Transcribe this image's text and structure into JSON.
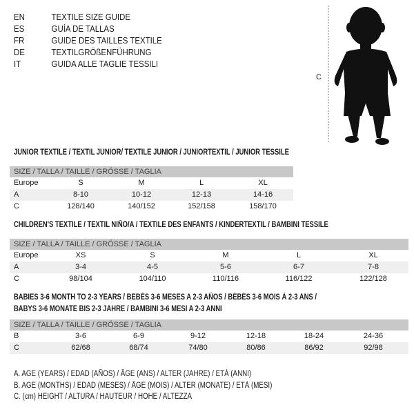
{
  "languages": [
    {
      "code": "EN",
      "title": "TEXTILE SIZE GUIDE"
    },
    {
      "code": "ES",
      "title": "GUÍA DE TALLAS"
    },
    {
      "code": "FR",
      "title": "GUIDE DES TAILLES TEXTILE"
    },
    {
      "code": "DE",
      "title": "TEXTILGRÖßENFÜHRUNG"
    },
    {
      "code": "IT",
      "title": "GUIDA ALLE TAGLIE TESSILI"
    }
  ],
  "figure": {
    "measure_label": "C",
    "icon": "child-silhouette"
  },
  "junior": {
    "title": "JUNIOR TEXTILE / TEXTIL JUNIOR/ TEXTILE JUNIOR / JUNIORTEXTIL / JUNIOR TESSILE",
    "header": "SIZE / TALLA / TAILLE / GRÖSSE / TAGLIA",
    "rows": [
      {
        "label": "Europe",
        "values": [
          "S",
          "M",
          "L",
          "XL"
        ]
      },
      {
        "label": "A",
        "values": [
          "8-10",
          "10-12",
          "12-13",
          "14-16"
        ]
      },
      {
        "label": "C",
        "values": [
          "128/140",
          "140/152",
          "152/158",
          "158/170"
        ]
      }
    ]
  },
  "children": {
    "title": "CHILDREN'S TEXTILE / TEXTIL NIÑO/A / TEXTILE DES ENFANTS / KINDERTEXTIL / BAMBINI TESSILE",
    "header": "SIZE / TALLA / TAILLE / GRÖSSE / TAGLIA",
    "rows": [
      {
        "label": "Europe",
        "values": [
          "XS",
          "S",
          "M",
          "L",
          "XL"
        ]
      },
      {
        "label": "A",
        "values": [
          "3-4",
          "4-5",
          "5-6",
          "6-7",
          "7-8"
        ]
      },
      {
        "label": "C",
        "values": [
          "98/104",
          "104/110",
          "110/116",
          "116/122",
          "122/128"
        ]
      }
    ]
  },
  "babies": {
    "title_line1": "BABIES 3-6 MONTH TO 2-3 YEARS / BEBÉS 3-6 MESES A 2-3 AÑOS / BÉBÉS 3-6 MOIS À 2-3 ANS /",
    "title_line2": "BABYS 3-6 MONATE BIS 2-3 JAHRE / BAMBINI 3-6 MESI A 2-3 ANNI",
    "header": "SIZE / TALLA / TAILLE / GRÖSSE / TAGLIA",
    "rows": [
      {
        "label": "B",
        "values": [
          "3-6",
          "6-9",
          "9-12",
          "12-18",
          "18-24",
          "24-36"
        ]
      },
      {
        "label": "C",
        "values": [
          "62/68",
          "68/74",
          "74/80",
          "80/86",
          "86/92",
          "92/98"
        ]
      }
    ]
  },
  "legend": [
    "A. AGE (YEARS) / EDAD (AÑOS) / ÂGE (ANS) / ALTER (JAHRE) / ETÀ (ANNI)",
    "B. AGE (MONTHS) / EDAD (MESES) / ÂGE (MOIS) / ALTER (MONATE) / ETÀ (MESI)",
    "C. (cm) HEIGHT / ALTURA / HAUTEUR / HÖHE / ALTEZZA"
  ]
}
